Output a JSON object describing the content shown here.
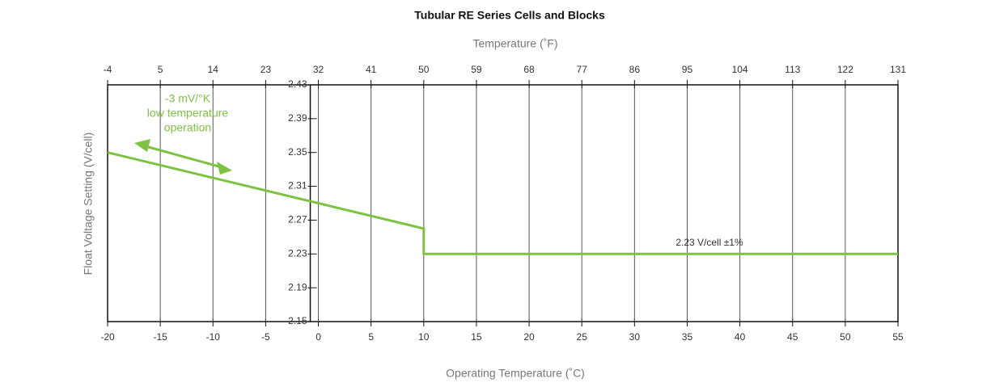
{
  "chart_data": {
    "type": "line",
    "title": "Tubular RE Series Cells and Blocks",
    "x2_label": "Temperature (˚F)",
    "xlabel": "Operating Temperature (˚C)",
    "ylabel": "Float Voltage Setting (V/cell)",
    "xlim": [
      -20,
      55
    ],
    "xticks": [
      -20,
      -15,
      -10,
      -5,
      0,
      5,
      10,
      15,
      20,
      25,
      30,
      35,
      40,
      45,
      50,
      55
    ],
    "x2lim": [
      -4,
      131
    ],
    "x2ticks": [
      -4,
      5,
      14,
      23,
      32,
      41,
      50,
      59,
      68,
      77,
      86,
      95,
      104,
      113,
      122,
      131
    ],
    "ylim": [
      2.15,
      2.43
    ],
    "yticks": [
      2.15,
      2.19,
      2.23,
      2.27,
      2.31,
      2.35,
      2.39,
      2.43
    ],
    "grid": true,
    "series": [
      {
        "color": "#7dc242",
        "x": [
          -20,
          10,
          10,
          55
        ],
        "values": [
          2.35,
          2.26,
          2.23,
          2.23
        ]
      }
    ],
    "annotations": [
      "-3 mV/°K",
      "low temperature",
      "operation",
      "2.23 V/cell ±1%"
    ]
  }
}
